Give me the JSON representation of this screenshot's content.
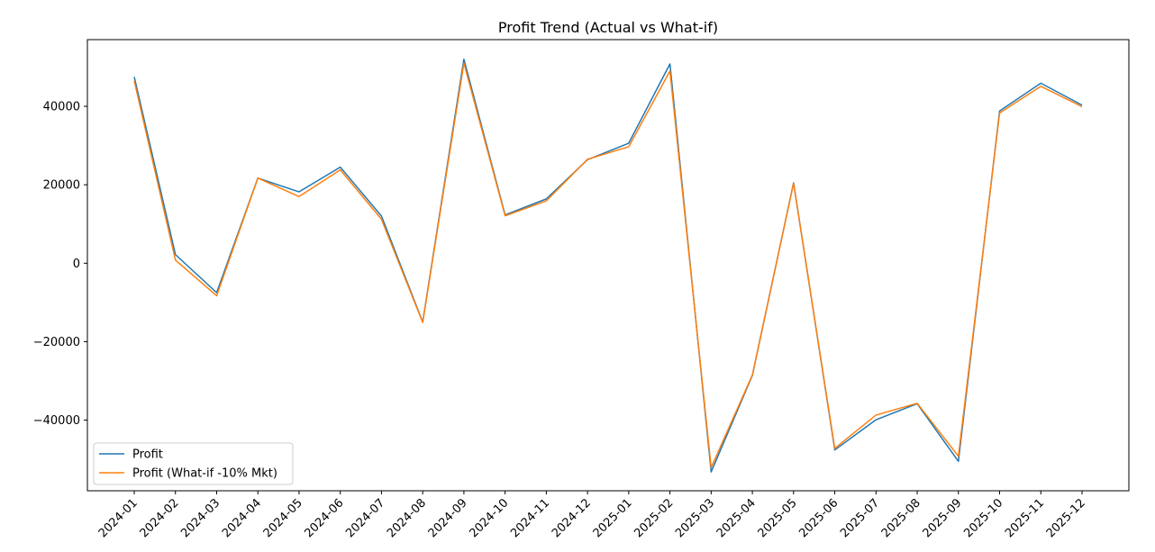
{
  "chart_data": {
    "type": "line",
    "title": "Profit Trend (Actual vs What-if)",
    "xlabel": "",
    "ylabel": "",
    "categories": [
      "2024-01",
      "2024-02",
      "2024-03",
      "2024-04",
      "2024-05",
      "2024-06",
      "2024-07",
      "2024-08",
      "2024-09",
      "2024-10",
      "2024-11",
      "2024-12",
      "2025-01",
      "2025-02",
      "2025-03",
      "2025-04",
      "2025-05",
      "2025-06",
      "2025-07",
      "2025-08",
      "2025-09",
      "2025-10",
      "2025-11",
      "2025-12"
    ],
    "yticks": [
      -40000,
      -20000,
      0,
      20000,
      40000
    ],
    "ytick_labels": [
      "−40000",
      "−20000",
      "0",
      "20000",
      "40000"
    ],
    "ylim": [
      -58000,
      57000
    ],
    "grid": false,
    "legend": "lower-left",
    "series": [
      {
        "name": "Profit",
        "color": "#1f77b4",
        "values": [
          47500,
          2200,
          -7500,
          21700,
          18200,
          24500,
          12000,
          -15000,
          52000,
          12300,
          16400,
          26400,
          30600,
          50800,
          -53200,
          -28600,
          20500,
          -47600,
          -39900,
          -35800,
          -50500,
          38800,
          45900,
          40300
        ]
      },
      {
        "name": "Profit (What-if -10% Mkt)",
        "color": "#ff7f0e",
        "values": [
          46500,
          800,
          -8300,
          21700,
          17000,
          23800,
          11200,
          -15100,
          51000,
          12100,
          15900,
          26500,
          29700,
          49000,
          -52100,
          -28500,
          20400,
          -47200,
          -38700,
          -35700,
          -49200,
          38300,
          45100,
          39900
        ]
      }
    ]
  }
}
